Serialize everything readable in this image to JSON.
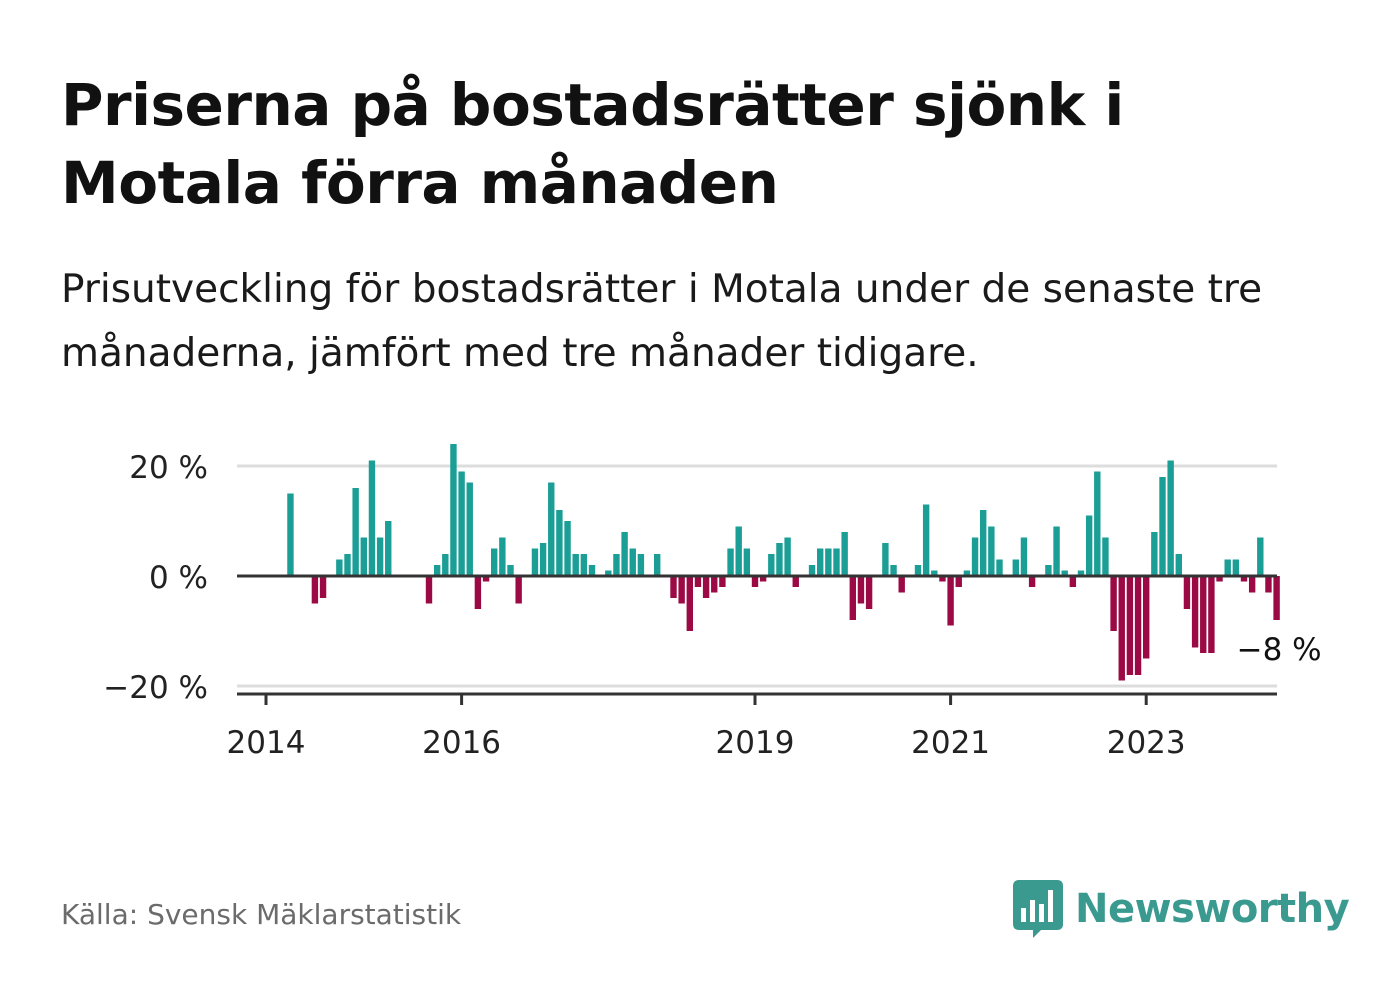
{
  "title": "Priserna på bostadsrätter sjönk i Motala förra månaden",
  "subtitle": "Prisutveckling för bostadsrätter i Motala under de senaste tre månaderna, jämfört med tre månader tidigare.",
  "source": "Källa: Svensk Mäklarstatistik",
  "brand": "Newsworthy",
  "colors": {
    "positive": "#1a9e96",
    "negative": "#9b0a45",
    "brand": "#3a9a90",
    "grid": "#dddddd",
    "zero": "#333333"
  },
  "chart_data": {
    "type": "bar",
    "ylim": [
      -22,
      24
    ],
    "y_ticks": [
      {
        "value": 20,
        "label": "20 %"
      },
      {
        "value": 0,
        "label": "0 %"
      },
      {
        "value": -20,
        "label": "−20 %"
      }
    ],
    "x_ticks": [
      "2014",
      "2016",
      "2019",
      "2021",
      "2023"
    ],
    "x_tick_index": [
      0,
      24,
      60,
      84,
      108
    ],
    "first_month": "2014-01",
    "values": [
      null,
      null,
      null,
      15,
      null,
      null,
      -5,
      -4,
      null,
      3,
      4,
      16,
      7,
      21,
      7,
      10,
      null,
      null,
      null,
      null,
      -5,
      2,
      4,
      24,
      19,
      17,
      -6,
      -1,
      5,
      7,
      2,
      -5,
      null,
      5,
      6,
      17,
      12,
      10,
      4,
      4,
      2,
      null,
      1,
      4,
      8,
      5,
      4,
      null,
      4,
      null,
      -4,
      -5,
      -10,
      -2,
      -4,
      -3,
      -2,
      5,
      9,
      5,
      -2,
      -1,
      4,
      6,
      7,
      -2,
      null,
      2,
      5,
      5,
      5,
      8,
      -8,
      -5,
      -6,
      null,
      6,
      2,
      -3,
      null,
      2,
      13,
      1,
      -1,
      -9,
      -2,
      1,
      7,
      12,
      9,
      3,
      null,
      3,
      7,
      -2,
      null,
      2,
      9,
      1,
      -2,
      1,
      11,
      19,
      7,
      -10,
      -19,
      -18,
      -18,
      -15,
      8,
      18,
      21,
      4,
      -6,
      -13,
      -14,
      -14,
      -1,
      3,
      3,
      -1,
      -3,
      7,
      -3,
      -8
    ],
    "last_label": "−8 %"
  }
}
